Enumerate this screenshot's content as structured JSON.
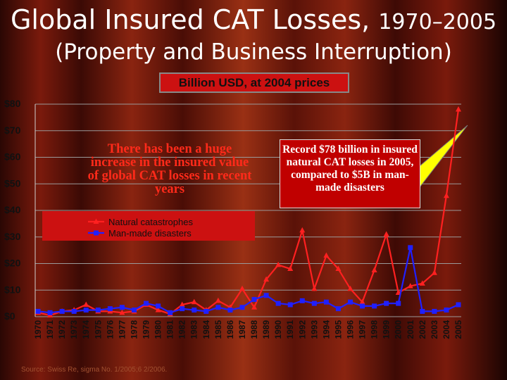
{
  "title": "Global Insured CAT Losses,",
  "title_years": "1970–2005",
  "subtitle": "(Property and Business Interruption)",
  "unit_label": "Billion USD, at 2004 prices",
  "callout_left": "There has been a huge increase in the insured value of global CAT losses in recent years",
  "callout_right": "Record $78 billion in insured natural CAT losses in 2005, compared to $5B in man-made disasters",
  "source": "Source: Swiss Re, sigma No. 1/2005;6 2/2006.",
  "colors": {
    "natural": "#ff2020",
    "manmade": "#2020ff",
    "axis": "#cfcfcf"
  },
  "chart_data": {
    "type": "line",
    "ylim": [
      0,
      80
    ],
    "ytick_labels": [
      "$0",
      "$10",
      "$20",
      "$30",
      "$40",
      "$50",
      "$60",
      "$70",
      "$80"
    ],
    "grid": true,
    "legend": "upper-left",
    "x": [
      "1970",
      "1971",
      "1972",
      "1973",
      "1974",
      "1975",
      "1976",
      "1977",
      "1978",
      "1979",
      "1980",
      "1981",
      "1982",
      "1983",
      "1984",
      "1985",
      "1986",
      "1987",
      "1988",
      "1989",
      "1990",
      "1991",
      "1992",
      "1993",
      "1994",
      "1995",
      "1996",
      "1997",
      "1998",
      "1999",
      "2000",
      "2001",
      "2002",
      "2003",
      "2004",
      "2005"
    ],
    "series": [
      {
        "name": "Natural catastrophes",
        "values": [
          1.5,
          0.5,
          2.0,
          2.5,
          4.5,
          2.0,
          2.0,
          1.5,
          2.0,
          4.5,
          2.5,
          1.0,
          4.5,
          5.5,
          2.5,
          6.0,
          3.5,
          10.5,
          3.5,
          14.0,
          19.5,
          18.0,
          32.5,
          10.5,
          23.0,
          18.0,
          10.5,
          5.5,
          17.5,
          31.0,
          9.0,
          11.5,
          12.5,
          16.5,
          45.5,
          78.0
        ]
      },
      {
        "name": "Man-made disasters",
        "values": [
          2.0,
          1.5,
          2.0,
          2.0,
          2.5,
          2.5,
          3.0,
          3.5,
          2.5,
          5.0,
          4.0,
          1.5,
          3.0,
          2.5,
          2.0,
          3.5,
          2.5,
          3.5,
          6.5,
          8.0,
          5.0,
          4.5,
          6.0,
          5.0,
          5.5,
          3.0,
          5.5,
          4.0,
          4.0,
          5.0,
          5.0,
          26.0,
          2.0,
          2.0,
          2.5,
          4.5
        ]
      }
    ]
  }
}
